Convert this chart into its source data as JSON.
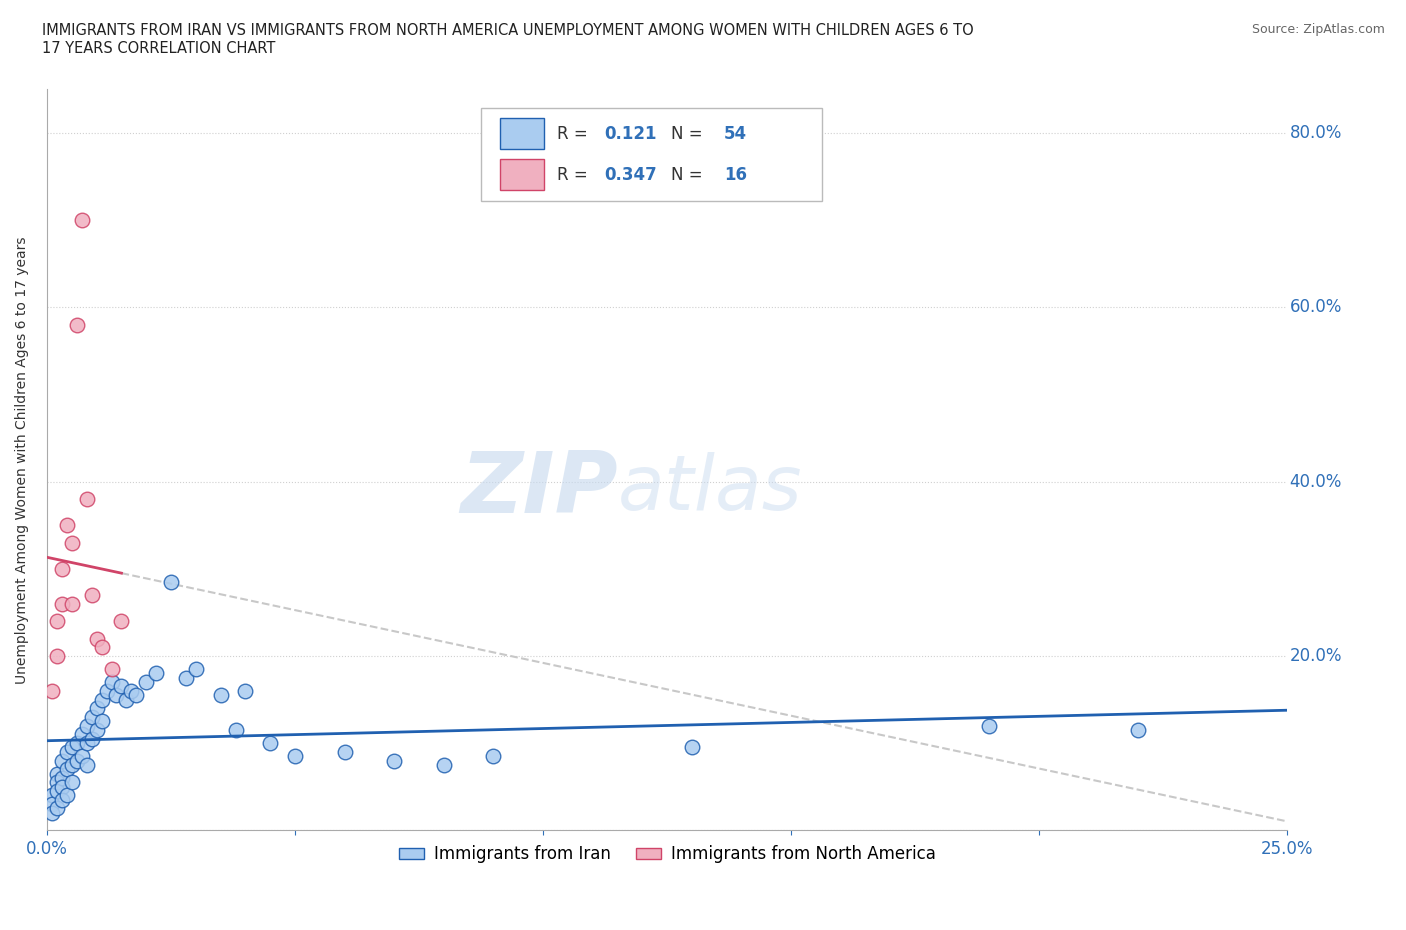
{
  "title": "IMMIGRANTS FROM IRAN VS IMMIGRANTS FROM NORTH AMERICA UNEMPLOYMENT AMONG WOMEN WITH CHILDREN AGES 6 TO\n17 YEARS CORRELATION CHART",
  "source_text": "Source: ZipAtlas.com",
  "ylabel": "Unemployment Among Women with Children Ages 6 to 17 years",
  "xlim": [
    0.0,
    0.25
  ],
  "ylim": [
    0.0,
    0.85
  ],
  "x_ticks": [
    0.0,
    0.05,
    0.1,
    0.15,
    0.2,
    0.25
  ],
  "y_ticks": [
    0.0,
    0.2,
    0.4,
    0.6,
    0.8
  ],
  "iran_R": 0.121,
  "iran_N": 54,
  "na_R": 0.347,
  "na_N": 16,
  "iran_color": "#aaccf0",
  "iran_line_color": "#2060b0",
  "na_color": "#f0b0c0",
  "na_line_color": "#d04468",
  "trend_dash_color": "#c8c8c8",
  "watermark": "ZIPatlas",
  "iran_x": [
    0.001,
    0.001,
    0.001,
    0.002,
    0.002,
    0.002,
    0.002,
    0.003,
    0.003,
    0.003,
    0.003,
    0.004,
    0.004,
    0.004,
    0.005,
    0.005,
    0.005,
    0.006,
    0.006,
    0.007,
    0.007,
    0.008,
    0.008,
    0.008,
    0.009,
    0.009,
    0.01,
    0.01,
    0.011,
    0.011,
    0.012,
    0.013,
    0.014,
    0.015,
    0.016,
    0.017,
    0.018,
    0.02,
    0.022,
    0.025,
    0.028,
    0.03,
    0.035,
    0.038,
    0.04,
    0.045,
    0.05,
    0.06,
    0.07,
    0.08,
    0.09,
    0.13,
    0.19,
    0.22
  ],
  "iran_y": [
    0.04,
    0.03,
    0.02,
    0.065,
    0.055,
    0.045,
    0.025,
    0.08,
    0.06,
    0.05,
    0.035,
    0.09,
    0.07,
    0.04,
    0.095,
    0.075,
    0.055,
    0.1,
    0.08,
    0.11,
    0.085,
    0.12,
    0.1,
    0.075,
    0.13,
    0.105,
    0.14,
    0.115,
    0.15,
    0.125,
    0.16,
    0.17,
    0.155,
    0.165,
    0.15,
    0.16,
    0.155,
    0.17,
    0.18,
    0.285,
    0.175,
    0.185,
    0.155,
    0.115,
    0.16,
    0.1,
    0.085,
    0.09,
    0.08,
    0.075,
    0.085,
    0.095,
    0.12,
    0.115
  ],
  "na_x": [
    0.001,
    0.002,
    0.002,
    0.003,
    0.003,
    0.004,
    0.005,
    0.005,
    0.006,
    0.007,
    0.008,
    0.009,
    0.01,
    0.011,
    0.013,
    0.015
  ],
  "na_y": [
    0.16,
    0.2,
    0.24,
    0.26,
    0.3,
    0.35,
    0.26,
    0.33,
    0.58,
    0.7,
    0.38,
    0.27,
    0.22,
    0.21,
    0.185,
    0.24
  ]
}
